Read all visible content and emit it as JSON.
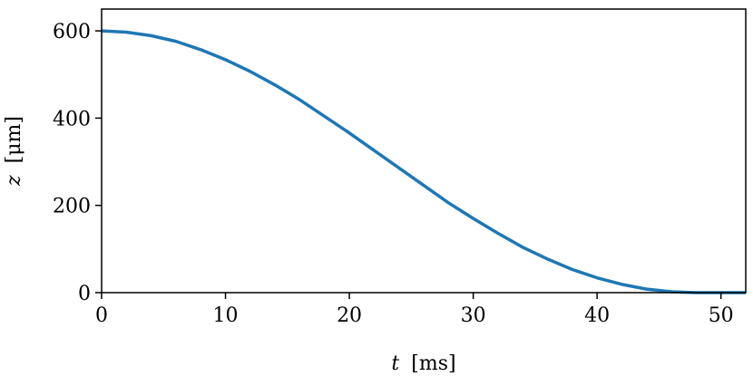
{
  "chart_data": {
    "type": "line",
    "title": "",
    "xlabel_symbol": "t",
    "xlabel_unit": "[ms]",
    "ylabel_symbol": "z",
    "ylabel_unit": "[μm]",
    "xlim": [
      0,
      52
    ],
    "ylim": [
      0,
      650
    ],
    "xticks": [
      0,
      10,
      20,
      30,
      40,
      50
    ],
    "yticks": [
      0,
      200,
      400,
      600
    ],
    "grid": false,
    "colors": {
      "line": "#1f77b4",
      "axes": "#000000"
    },
    "series": [
      {
        "x": [
          0,
          2,
          4,
          6,
          8,
          10,
          12,
          14,
          16,
          18,
          20,
          22,
          24,
          26,
          28,
          30,
          32,
          34,
          36,
          38,
          40,
          42,
          44,
          46,
          48,
          50,
          52
        ],
        "y": [
          600,
          597,
          589,
          576,
          557,
          534,
          507,
          476,
          442,
          404,
          366,
          326,
          286,
          246,
          206,
          170,
          136,
          104,
          77,
          53,
          34,
          19,
          8,
          2,
          0,
          0,
          0
        ]
      }
    ]
  }
}
